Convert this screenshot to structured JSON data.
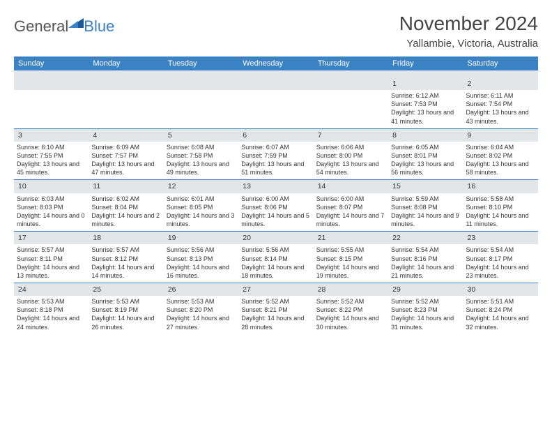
{
  "logo": {
    "general": "General",
    "blue": "Blue"
  },
  "title": "November 2024",
  "location": "Yallambie, Victoria, Australia",
  "accent_color": "#3b82c4",
  "daynum_bg": "#e3e6e9",
  "day_headers": [
    "Sunday",
    "Monday",
    "Tuesday",
    "Wednesday",
    "Thursday",
    "Friday",
    "Saturday"
  ],
  "weeks": [
    [
      null,
      null,
      null,
      null,
      null,
      {
        "n": "1",
        "sr": "6:12 AM",
        "ss": "7:53 PM",
        "dl": "13 hours and 41 minutes."
      },
      {
        "n": "2",
        "sr": "6:11 AM",
        "ss": "7:54 PM",
        "dl": "13 hours and 43 minutes."
      }
    ],
    [
      {
        "n": "3",
        "sr": "6:10 AM",
        "ss": "7:55 PM",
        "dl": "13 hours and 45 minutes."
      },
      {
        "n": "4",
        "sr": "6:09 AM",
        "ss": "7:57 PM",
        "dl": "13 hours and 47 minutes."
      },
      {
        "n": "5",
        "sr": "6:08 AM",
        "ss": "7:58 PM",
        "dl": "13 hours and 49 minutes."
      },
      {
        "n": "6",
        "sr": "6:07 AM",
        "ss": "7:59 PM",
        "dl": "13 hours and 51 minutes."
      },
      {
        "n": "7",
        "sr": "6:06 AM",
        "ss": "8:00 PM",
        "dl": "13 hours and 54 minutes."
      },
      {
        "n": "8",
        "sr": "6:05 AM",
        "ss": "8:01 PM",
        "dl": "13 hours and 56 minutes."
      },
      {
        "n": "9",
        "sr": "6:04 AM",
        "ss": "8:02 PM",
        "dl": "13 hours and 58 minutes."
      }
    ],
    [
      {
        "n": "10",
        "sr": "6:03 AM",
        "ss": "8:03 PM",
        "dl": "14 hours and 0 minutes."
      },
      {
        "n": "11",
        "sr": "6:02 AM",
        "ss": "8:04 PM",
        "dl": "14 hours and 2 minutes."
      },
      {
        "n": "12",
        "sr": "6:01 AM",
        "ss": "8:05 PM",
        "dl": "14 hours and 3 minutes."
      },
      {
        "n": "13",
        "sr": "6:00 AM",
        "ss": "8:06 PM",
        "dl": "14 hours and 5 minutes."
      },
      {
        "n": "14",
        "sr": "6:00 AM",
        "ss": "8:07 PM",
        "dl": "14 hours and 7 minutes."
      },
      {
        "n": "15",
        "sr": "5:59 AM",
        "ss": "8:08 PM",
        "dl": "14 hours and 9 minutes."
      },
      {
        "n": "16",
        "sr": "5:58 AM",
        "ss": "8:10 PM",
        "dl": "14 hours and 11 minutes."
      }
    ],
    [
      {
        "n": "17",
        "sr": "5:57 AM",
        "ss": "8:11 PM",
        "dl": "14 hours and 13 minutes."
      },
      {
        "n": "18",
        "sr": "5:57 AM",
        "ss": "8:12 PM",
        "dl": "14 hours and 14 minutes."
      },
      {
        "n": "19",
        "sr": "5:56 AM",
        "ss": "8:13 PM",
        "dl": "14 hours and 16 minutes."
      },
      {
        "n": "20",
        "sr": "5:56 AM",
        "ss": "8:14 PM",
        "dl": "14 hours and 18 minutes."
      },
      {
        "n": "21",
        "sr": "5:55 AM",
        "ss": "8:15 PM",
        "dl": "14 hours and 19 minutes."
      },
      {
        "n": "22",
        "sr": "5:54 AM",
        "ss": "8:16 PM",
        "dl": "14 hours and 21 minutes."
      },
      {
        "n": "23",
        "sr": "5:54 AM",
        "ss": "8:17 PM",
        "dl": "14 hours and 23 minutes."
      }
    ],
    [
      {
        "n": "24",
        "sr": "5:53 AM",
        "ss": "8:18 PM",
        "dl": "14 hours and 24 minutes."
      },
      {
        "n": "25",
        "sr": "5:53 AM",
        "ss": "8:19 PM",
        "dl": "14 hours and 26 minutes."
      },
      {
        "n": "26",
        "sr": "5:53 AM",
        "ss": "8:20 PM",
        "dl": "14 hours and 27 minutes."
      },
      {
        "n": "27",
        "sr": "5:52 AM",
        "ss": "8:21 PM",
        "dl": "14 hours and 28 minutes."
      },
      {
        "n": "28",
        "sr": "5:52 AM",
        "ss": "8:22 PM",
        "dl": "14 hours and 30 minutes."
      },
      {
        "n": "29",
        "sr": "5:52 AM",
        "ss": "8:23 PM",
        "dl": "14 hours and 31 minutes."
      },
      {
        "n": "30",
        "sr": "5:51 AM",
        "ss": "8:24 PM",
        "dl": "14 hours and 32 minutes."
      }
    ]
  ],
  "labels": {
    "sunrise": "Sunrise:",
    "sunset": "Sunset:",
    "daylight": "Daylight:"
  }
}
